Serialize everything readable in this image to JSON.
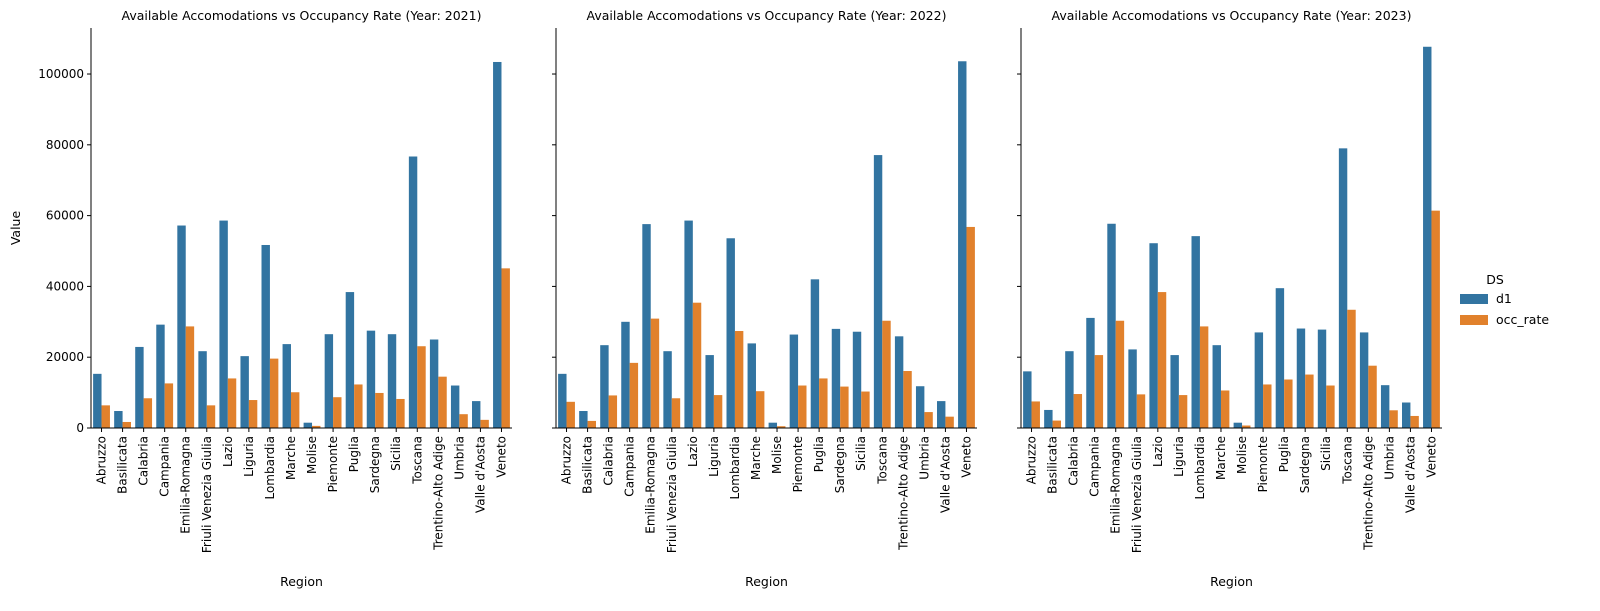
{
  "chart_data": {
    "type": "bar",
    "ylabel": "Value",
    "xlabel": "Region",
    "ylim": [
      0,
      113000
    ],
    "yticks": [
      0,
      20000,
      40000,
      60000,
      80000,
      100000
    ],
    "regions": [
      "Abruzzo",
      "Basilicata",
      "Calabria",
      "Campania",
      "Emilia-Romagna",
      "Friuli Venezia Giulia",
      "Lazio",
      "Liguria",
      "Lombardia",
      "Marche",
      "Molise",
      "Piemonte",
      "Puglia",
      "Sardegna",
      "Sicilia",
      "Toscana",
      "Trentino-Alto Adige",
      "Umbria",
      "Valle d'Aosta",
      "Veneto"
    ],
    "legend": {
      "title": "DS",
      "position": "right",
      "entries": [
        {
          "name": "d1",
          "color": "#3274a1"
        },
        {
          "name": "occ_rate",
          "color": "#e1812c"
        }
      ]
    },
    "panels": [
      {
        "title": "Available Accomodations vs Occupancy Rate (Year: 2021)",
        "series": [
          {
            "name": "d1",
            "color": "#3274a1",
            "values": [
              15300,
              4800,
              22900,
              29200,
              57200,
              21700,
              58600,
              20300,
              51700,
              23700,
              1500,
              26500,
              38400,
              27500,
              26500,
              76700,
              25000,
              12000,
              7600,
              103400
            ]
          },
          {
            "name": "occ_rate",
            "color": "#e1812c",
            "values": [
              6400,
              1700,
              8400,
              12600,
              28700,
              6400,
              14000,
              7900,
              19600,
              10100,
              600,
              8700,
              12300,
              9900,
              8200,
              23100,
              14500,
              3900,
              2300,
              45100
            ]
          }
        ]
      },
      {
        "title": "Available Accomodations vs Occupancy Rate (Year: 2022)",
        "series": [
          {
            "name": "d1",
            "color": "#3274a1",
            "values": [
              15300,
              4800,
              23400,
              30000,
              57600,
              21700,
              58600,
              20600,
              53600,
              23900,
              1500,
              26400,
              42000,
              28000,
              27200,
              77100,
              25900,
              11800,
              7600,
              103600
            ]
          },
          {
            "name": "occ_rate",
            "color": "#e1812c",
            "values": [
              7400,
              2000,
              9200,
              18400,
              30900,
              8400,
              35400,
              9300,
              27400,
              10400,
              500,
              12000,
              14000,
              11700,
              10300,
              30300,
              16100,
              4500,
              3200,
              56800
            ]
          }
        ]
      },
      {
        "title": "Available Accomodations vs Occupancy Rate (Year: 2023)",
        "series": [
          {
            "name": "d1",
            "color": "#3274a1",
            "values": [
              16000,
              5100,
              21700,
              31100,
              57700,
              22200,
              52200,
              20600,
              54200,
              23400,
              1500,
              27000,
              39500,
              28100,
              27800,
              79000,
              27000,
              12100,
              7200,
              107700
            ]
          },
          {
            "name": "occ_rate",
            "color": "#e1812c",
            "values": [
              7500,
              2100,
              9600,
              20600,
              30300,
              9500,
              38400,
              9300,
              28700,
              10600,
              700,
              12300,
              13700,
              15100,
              12000,
              33400,
              17600,
              5000,
              3400,
              61400
            ]
          }
        ]
      }
    ]
  }
}
